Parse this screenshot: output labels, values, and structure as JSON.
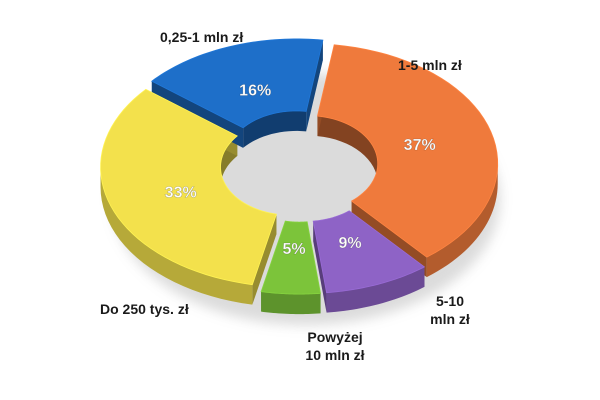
{
  "chart_data": {
    "type": "pie",
    "variant": "3d-donut-exploded",
    "slices": [
      {
        "label_lines": [
          "1-5 mln zł"
        ],
        "value": 37,
        "value_label": "37%",
        "color": "#ef7a3c"
      },
      {
        "label_lines": [
          "5-10",
          "mln zł"
        ],
        "value": 9,
        "value_label": "9%",
        "color": "#8e63c6"
      },
      {
        "label_lines": [
          "Powyżej",
          "10 mln zł"
        ],
        "value": 5,
        "value_label": "5%",
        "color": "#7cc43a"
      },
      {
        "label_lines": [
          "Do 250 tys. zł"
        ],
        "value": 33,
        "value_label": "33%",
        "color": "#f3e14c"
      },
      {
        "label_lines": [
          "0,25-1 mln zł"
        ],
        "value": 16,
        "value_label": "16%",
        "color": "#1e6fc9"
      }
    ]
  }
}
